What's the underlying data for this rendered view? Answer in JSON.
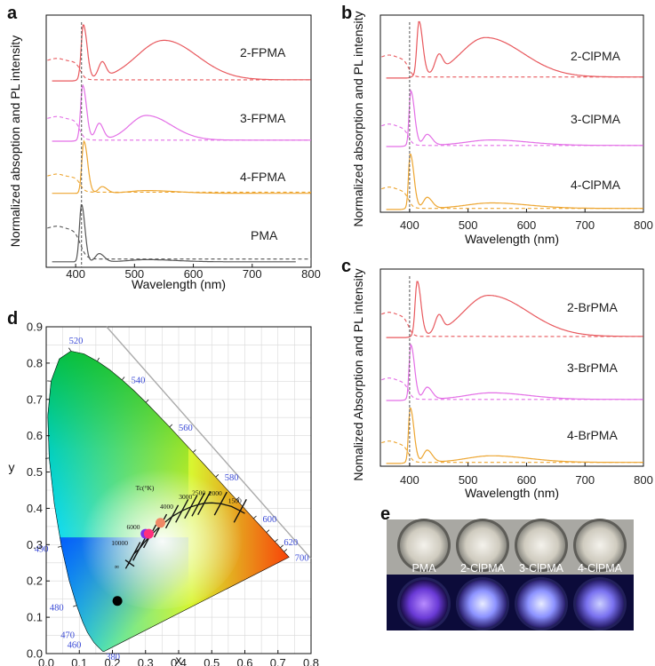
{
  "figure": {
    "panel_labels": [
      "a",
      "b",
      "c",
      "d",
      "e"
    ]
  },
  "chart_data": [
    {
      "id": "a",
      "type": "line",
      "xlabel": "Wavelength (nm)",
      "ylabel": "Normalized absoption and PL intensity",
      "xlim": [
        350,
        800
      ],
      "xticks": [
        400,
        500,
        600,
        700,
        800
      ],
      "ylim": [
        0,
        4.6
      ],
      "dashed_marker_x": 410,
      "series": [
        {
          "name": "2-FPMA",
          "color": "#e8595e",
          "offset": 3.4,
          "pl": {
            "peaks": [
              [
                413,
                1.0,
                5,
                9
              ],
              [
                445,
                0.28,
                9,
                9
              ],
              [
                550,
                0.72,
                65,
                80
              ]
            ],
            "rise": 406,
            "baseline": 0.02
          },
          "abs": {
            "level": 0.36,
            "bump": [
              368,
              0.05,
              15
            ],
            "edge": 408,
            "width": 4,
            "tail": 0.02
          }
        },
        {
          "name": "3-FPMA",
          "color": "#e36fe6",
          "offset": 2.3,
          "pl": {
            "peaks": [
              [
                412,
                1.0,
                5,
                9
              ],
              [
                440,
                0.3,
                9,
                10
              ],
              [
                520,
                0.45,
                40,
                60
              ]
            ],
            "rise": 405,
            "baseline": 0.02
          },
          "abs": {
            "level": 0.4,
            "bump": [
              368,
              0.05,
              15
            ],
            "edge": 407,
            "width": 4,
            "tail": 0.02
          }
        },
        {
          "name": "4-FPMA",
          "color": "#eda632",
          "offset": 1.35,
          "pl": {
            "peaks": [
              [
                414,
                0.95,
                5,
                9
              ],
              [
                445,
                0.12,
                9,
                12
              ],
              [
                520,
                0.05,
                40,
                70
              ]
            ],
            "rise": 407,
            "baseline": 0.0
          },
          "abs": {
            "level": 0.3,
            "bump": [
              368,
              0.05,
              15
            ],
            "edge": 408,
            "width": 4,
            "tail": 0.02
          }
        },
        {
          "name": "PMA",
          "color": "#555555",
          "offset": 0.1,
          "pl": {
            "peaks": [
              [
                410,
                1.05,
                5,
                8
              ],
              [
                440,
                0.15,
                9,
                12
              ],
              [
                520,
                0.04,
                40,
                70
              ]
            ],
            "rise": 403,
            "baseline": 0.0
          },
          "abs": {
            "level": 0.6,
            "bump": [
              368,
              0.05,
              15
            ],
            "edge": 408,
            "width": 5,
            "tail": 0.05
          }
        }
      ]
    },
    {
      "id": "b",
      "type": "line",
      "xlabel": "Wavelength (nm)",
      "ylabel": "Normalized absorption and PL intensity",
      "xlim": [
        350,
        800
      ],
      "xticks": [
        400,
        500,
        600,
        700,
        800
      ],
      "ylim": [
        0,
        3.6
      ],
      "dashed_marker_x": 400,
      "series": [
        {
          "name": "2-ClPMA",
          "color": "#e8595e",
          "offset": 2.45,
          "pl": {
            "peaks": [
              [
                416,
                1.0,
                5,
                9
              ],
              [
                450,
                0.3,
                9,
                9
              ],
              [
                530,
                0.72,
                60,
                90
              ]
            ],
            "rise": 406,
            "baseline": 0.02
          },
          "abs": {
            "level": 0.36,
            "bump": [
              365,
              0.06,
              15
            ],
            "edge": 398,
            "width": 4,
            "tail": 0.02
          }
        },
        {
          "name": "3-ClPMA",
          "color": "#e36fe6",
          "offset": 1.2,
          "pl": {
            "peaks": [
              [
                402,
                1.0,
                4,
                9
              ],
              [
                430,
                0.2,
                9,
                12
              ],
              [
                540,
                0.1,
                60,
                90
              ]
            ],
            "rise": 396,
            "baseline": 0.02
          },
          "abs": {
            "level": 0.35,
            "bump": [
              365,
              0.06,
              15
            ],
            "edge": 398,
            "width": 4,
            "tail": 0.02
          }
        },
        {
          "name": "4-ClPMA",
          "color": "#eda632",
          "offset": 0.05,
          "pl": {
            "peaks": [
              [
                401,
                1.0,
                4,
                9
              ],
              [
                430,
                0.2,
                9,
                12
              ],
              [
                540,
                0.1,
                60,
                90
              ]
            ],
            "rise": 395,
            "baseline": 0.02
          },
          "abs": {
            "level": 0.35,
            "bump": [
              365,
              0.06,
              15
            ],
            "edge": 398,
            "width": 4,
            "tail": 0.02
          }
        }
      ]
    },
    {
      "id": "c",
      "type": "line",
      "xlabel": "Wavelength (nm)",
      "ylabel": "Nomalized Absorption and PL intensity",
      "xlim": [
        350,
        800
      ],
      "xticks": [
        400,
        500,
        600,
        700,
        800
      ],
      "ylim": [
        0,
        3.6
      ],
      "dashed_marker_x": 400,
      "series": [
        {
          "name": "2-BrPMA",
          "color": "#e8595e",
          "offset": 2.35,
          "pl": {
            "peaks": [
              [
                413,
                1.0,
                5,
                9
              ],
              [
                450,
                0.3,
                9,
                9
              ],
              [
                535,
                0.75,
                60,
                95
              ]
            ],
            "rise": 405,
            "baseline": 0.02
          },
          "abs": {
            "level": 0.4,
            "bump": [
              365,
              0.06,
              15
            ],
            "edge": 398,
            "width": 4,
            "tail": 0.02
          }
        },
        {
          "name": "3-BrPMA",
          "color": "#e36fe6",
          "offset": 1.2,
          "pl": {
            "peaks": [
              [
                402,
                1.0,
                4,
                9
              ],
              [
                430,
                0.22,
                9,
                12
              ],
              [
                540,
                0.12,
                60,
                90
              ]
            ],
            "rise": 396,
            "baseline": 0.02
          },
          "abs": {
            "level": 0.35,
            "bump": [
              365,
              0.06,
              15
            ],
            "edge": 398,
            "width": 4,
            "tail": 0.02
          }
        },
        {
          "name": "4-BrPMA",
          "color": "#eda632",
          "offset": 0.05,
          "pl": {
            "peaks": [
              [
                401,
                1.0,
                4,
                9
              ],
              [
                430,
                0.22,
                9,
                12
              ],
              [
                540,
                0.12,
                60,
                90
              ]
            ],
            "rise": 395,
            "baseline": 0.02
          },
          "abs": {
            "level": 0.35,
            "bump": [
              365,
              0.06,
              15
            ],
            "edge": 398,
            "width": 4,
            "tail": 0.02
          }
        }
      ]
    },
    {
      "id": "d",
      "type": "scatter",
      "title": "",
      "xlabel": "x",
      "ylabel": "y",
      "xlim": [
        0.0,
        0.8
      ],
      "ylim": [
        0.0,
        0.9
      ],
      "xticks": [
        "0.0",
        "0.1",
        "0.2",
        "0.3",
        "0.4",
        "0.5",
        "0.6",
        "0.7",
        "0.8"
      ],
      "yticks": [
        "0.0",
        "0.1",
        "0.2",
        "0.3",
        "0.4",
        "0.5",
        "0.6",
        "0.7",
        "0.8",
        "0.9"
      ],
      "wavelength_labels": [
        {
          "text": "380",
          "x": 0.175,
          "y": 0.005
        },
        {
          "text": "460",
          "x": 0.144,
          "y": 0.03
        },
        {
          "text": "470",
          "x": 0.124,
          "y": 0.058
        },
        {
          "text": "480",
          "x": 0.091,
          "y": 0.133
        },
        {
          "text": "490",
          "x": 0.045,
          "y": 0.295
        },
        {
          "text": "520",
          "x": 0.074,
          "y": 0.834
        },
        {
          "text": "540",
          "x": 0.23,
          "y": 0.754
        },
        {
          "text": "560",
          "x": 0.373,
          "y": 0.624
        },
        {
          "text": "580",
          "x": 0.512,
          "y": 0.487
        },
        {
          "text": "600",
          "x": 0.627,
          "y": 0.372
        },
        {
          "text": "620",
          "x": 0.691,
          "y": 0.308
        },
        {
          "text": "700",
          "x": 0.735,
          "y": 0.265
        }
      ],
      "cct_title": "Tc(°K)",
      "cct_labels": [
        {
          "text": "10000",
          "x": 0.281,
          "y": 0.288
        },
        {
          "text": "6000",
          "x": 0.322,
          "y": 0.332
        },
        {
          "text": "4000",
          "x": 0.38,
          "y": 0.377
        },
        {
          "text": "3000",
          "x": 0.437,
          "y": 0.404
        },
        {
          "text": "2500",
          "x": 0.477,
          "y": 0.414
        },
        {
          "text": "2000",
          "x": 0.527,
          "y": 0.413
        },
        {
          "text": "1500",
          "x": 0.586,
          "y": 0.393
        },
        {
          "text": "∞",
          "x": 0.24,
          "y": 0.234
        }
      ],
      "points": [
        {
          "name": "PMA",
          "x": 0.215,
          "y": 0.145,
          "color": "#000000"
        },
        {
          "name": "3-ClPMA",
          "x": 0.3,
          "y": 0.33,
          "color": "#7e32e6"
        },
        {
          "name": "4-ClPMA",
          "x": 0.31,
          "y": 0.33,
          "color": "#ff2f7c"
        },
        {
          "name": "2-ClPMA",
          "x": 0.345,
          "y": 0.36,
          "color": "#f08866"
        }
      ]
    }
  ],
  "photo": {
    "labels": [
      "PMA",
      "2-ClPMA",
      "3-ClPMA",
      "4-ClPMA"
    ]
  }
}
